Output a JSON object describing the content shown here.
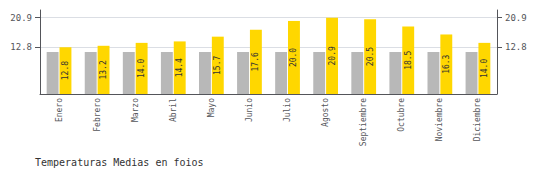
{
  "chart_data": {
    "type": "bar",
    "title": "Temperaturas Medias en foios",
    "categories": [
      "Enero",
      "Febrero",
      "Marzo",
      "Abril",
      "Mayo",
      "Junio",
      "Julio",
      "Agosto",
      "Septiembre",
      "Octubre",
      "Noviembre",
      "Diciembre"
    ],
    "series": [
      {
        "color": "#B8B8B8",
        "values": [
          11.5,
          11.5,
          11.5,
          11.5,
          11.5,
          11.5,
          11.5,
          11.5,
          11.5,
          11.5,
          11.5,
          11.5
        ]
      },
      {
        "color": "#FFD700",
        "values": [
          12.8,
          13.2,
          14.0,
          14.4,
          15.7,
          17.6,
          20.0,
          20.9,
          20.5,
          18.5,
          16.3,
          14.0
        ],
        "value_labels": [
          "12.8",
          "13.2",
          "14.0",
          "14.4",
          "15.7",
          "17.6",
          "20.0",
          "20.9",
          "20.5",
          "18.5",
          "16.3",
          "14.0"
        ],
        "data_labels": true
      }
    ],
    "ylim": [
      0,
      23
    ],
    "yticks": [
      12.8,
      20.9
    ],
    "y2lim": [
      0,
      23
    ],
    "y2ticks": [
      12.8,
      20.9
    ],
    "grid": true
  }
}
